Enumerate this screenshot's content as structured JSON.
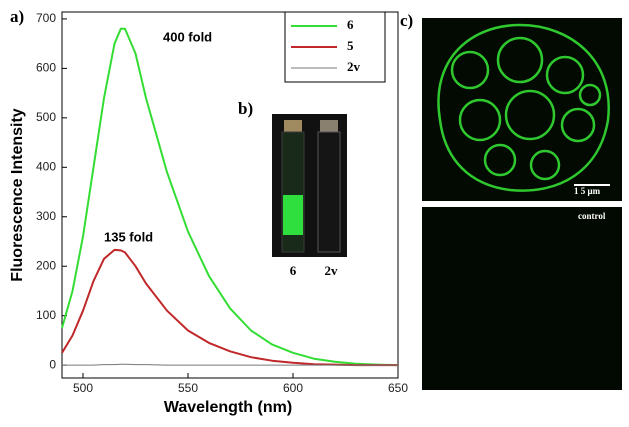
{
  "chart_data": {
    "type": "line",
    "x_label": "Wavelength (nm)",
    "y_label": "Fluorescence Intensity",
    "x": [
      490,
      495,
      500,
      505,
      510,
      515,
      518,
      520,
      525,
      530,
      540,
      550,
      560,
      570,
      580,
      590,
      600,
      610,
      620,
      630,
      640,
      650
    ],
    "series": [
      {
        "name": "6",
        "color": "#33dd33",
        "values": [
          75,
          150,
          260,
          400,
          540,
          650,
          680,
          680,
          630,
          540,
          390,
          270,
          180,
          115,
          70,
          42,
          25,
          13,
          7,
          3,
          1,
          0
        ]
      },
      {
        "name": "5",
        "color": "#c0282a",
        "values": [
          25,
          60,
          110,
          170,
          215,
          233,
          232,
          228,
          200,
          165,
          110,
          70,
          45,
          28,
          16,
          9,
          5,
          2,
          1,
          0,
          0,
          0
        ]
      },
      {
        "name": "2v",
        "color": "#777777",
        "values": [
          0,
          0,
          0,
          0,
          1,
          1,
          2,
          2,
          1,
          1,
          0,
          0,
          0,
          0,
          0,
          0,
          0,
          0,
          0,
          0,
          0,
          0
        ]
      }
    ],
    "annotations": [
      "400 fold",
      "135 fold"
    ],
    "xlim": [
      490,
      650
    ],
    "xticks": [
      500,
      550,
      600,
      650
    ],
    "ylim": [
      -26,
      714
    ],
    "yticks": [
      0,
      100,
      200,
      300,
      400,
      500,
      600,
      700
    ],
    "legend": "upper right"
  },
  "panels": {
    "a": "a)",
    "b": "b)",
    "c": "c)",
    "photo_labels": [
      "6",
      "2v"
    ],
    "scale_bar": "1 5 μm",
    "control": "control"
  }
}
